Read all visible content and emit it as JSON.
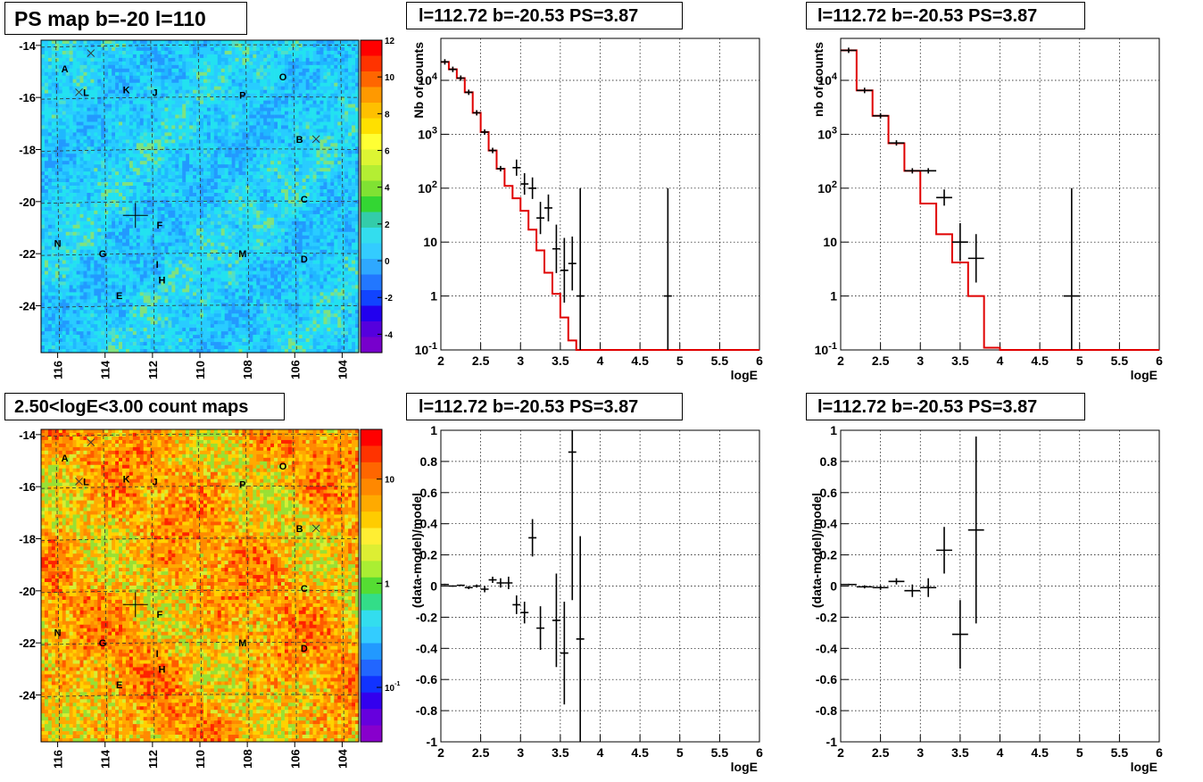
{
  "titles": {
    "map_top": "PS map b=-20 l=110",
    "map_bottom": "2.50<logE<3.00 count maps",
    "spec1": "l=112.72 b=-20.53 PS=3.87",
    "spec2": "l=112.72 b=-20.53 PS=3.87",
    "res1": "l=112.72 b=-20.53 PS=3.87",
    "res2": "l=112.72 b=-20.53 PS=3.87"
  },
  "colors": {
    "model_line": "#e00000",
    "data_marker": "#000000",
    "grid": "#000000"
  },
  "chart_data": [
    {
      "type": "heatmap",
      "id": "map_top",
      "title": "PS map b=-20 l=110",
      "x_ticks": [
        "116",
        "114",
        "112",
        "110",
        "108",
        "106",
        "104"
      ],
      "y_ticks": [
        "-14",
        "-16",
        "-18",
        "-20",
        "-22",
        "-24"
      ],
      "xlim": [
        116.7,
        103.3
      ],
      "ylim": [
        -25.8,
        -13.8
      ],
      "colorbar_ticks": [
        "12",
        "10",
        "8",
        "6",
        "4",
        "2",
        "0",
        "-2",
        "-4"
      ],
      "colorbar_range": [
        -5,
        12
      ],
      "source_labels": [
        {
          "t": "A",
          "x": 115.7,
          "y": -14.9
        },
        {
          "t": "L",
          "x": 114.8,
          "y": -15.8
        },
        {
          "t": "K",
          "x": 113.1,
          "y": -15.7
        },
        {
          "t": "J",
          "x": 111.9,
          "y": -15.8
        },
        {
          "t": "P",
          "x": 108.2,
          "y": -15.9
        },
        {
          "t": "O",
          "x": 106.5,
          "y": -15.2
        },
        {
          "t": "B",
          "x": 105.8,
          "y": -17.6
        },
        {
          "t": "C",
          "x": 105.6,
          "y": -19.9
        },
        {
          "t": "F",
          "x": 111.7,
          "y": -20.9
        },
        {
          "t": "N",
          "x": 116.0,
          "y": -21.6
        },
        {
          "t": "G",
          "x": 114.1,
          "y": -22.0
        },
        {
          "t": "M",
          "x": 108.2,
          "y": -22.0
        },
        {
          "t": "D",
          "x": 105.6,
          "y": -22.2
        },
        {
          "t": "I",
          "x": 111.8,
          "y": -22.4
        },
        {
          "t": "H",
          "x": 111.6,
          "y": -23.0
        },
        {
          "t": "E",
          "x": 113.4,
          "y": -23.6
        }
      ],
      "crosses": [
        {
          "x": 114.6,
          "y": -14.3
        },
        {
          "x": 115.1,
          "y": -15.8
        },
        {
          "x": 105.1,
          "y": -17.6
        }
      ],
      "marker": {
        "x": 112.72,
        "y": -20.53
      }
    },
    {
      "type": "heatmap",
      "id": "map_bottom",
      "title": "2.50<logE<3.00 count maps",
      "x_ticks": [
        "116",
        "114",
        "112",
        "110",
        "108",
        "106",
        "104"
      ],
      "y_ticks": [
        "-14",
        "-16",
        "-18",
        "-20",
        "-22",
        "-24"
      ],
      "xlim": [
        116.7,
        103.3
      ],
      "ylim": [
        -25.8,
        -13.8
      ],
      "colorbar_ticks": [
        "10",
        "1",
        "10^-1"
      ],
      "colorbar_scale": "log",
      "colorbar_range": [
        0.03,
        30
      ],
      "source_labels": "same as map_top",
      "marker": {
        "x": 112.72,
        "y": -20.53
      }
    },
    {
      "type": "line",
      "id": "spec1",
      "title": "l=112.72 b=-20.53 PS=3.87",
      "xlabel": "logE",
      "ylabel": "Nb of counts",
      "yscale": "log",
      "xlim": [
        2,
        6
      ],
      "ylim": [
        0.1,
        60000
      ],
      "x_ticks": [
        "2",
        "2.5",
        "3",
        "3.5",
        "4",
        "4.5",
        "5",
        "5.5",
        "6"
      ],
      "y_ticks": [
        "10^-1",
        "1",
        "10",
        "10^2",
        "10^3",
        "10^4"
      ],
      "grid": true,
      "model": {
        "bin_width": 0.1,
        "edges_start": 2.0,
        "values": [
          22000,
          16000,
          11000,
          6000,
          2500,
          1100,
          500,
          230,
          110,
          65,
          38,
          17,
          7,
          2.7,
          1.1,
          0.4,
          0.15,
          0.1,
          0.1,
          0.1,
          0.1,
          0.1,
          0.1,
          0.1,
          0.1,
          0.1,
          0.1,
          0.1,
          0.1,
          0.1,
          0.1,
          0.1,
          0.1,
          0.1,
          0.1,
          0.1,
          0.1,
          0.1,
          0.1,
          0.1
        ]
      },
      "data": [
        {
          "x": 2.05,
          "y": 22000
        },
        {
          "x": 2.15,
          "y": 16000
        },
        {
          "x": 2.25,
          "y": 11000
        },
        {
          "x": 2.35,
          "y": 6000
        },
        {
          "x": 2.45,
          "y": 2500
        },
        {
          "x": 2.55,
          "y": 1100
        },
        {
          "x": 2.65,
          "y": 500
        },
        {
          "x": 2.75,
          "y": 230
        },
        {
          "x": 2.95,
          "y": 240,
          "e": 0.15
        },
        {
          "x": 3.05,
          "y": 120,
          "e": 0.2
        },
        {
          "x": 3.15,
          "y": 100,
          "e": 0.2
        },
        {
          "x": 3.25,
          "y": 28,
          "e": 0.3
        },
        {
          "x": 3.35,
          "y": 43,
          "e": 0.25
        },
        {
          "x": 3.45,
          "y": 7.5,
          "e": 0.45
        },
        {
          "x": 3.55,
          "y": 3,
          "e": 0.6
        },
        {
          "x": 3.65,
          "y": 4,
          "e": 0.5
        },
        {
          "x": 3.75,
          "y": 1,
          "e": 2
        },
        {
          "x": 4.85,
          "y": 1,
          "e": 2
        }
      ]
    },
    {
      "type": "line",
      "id": "spec2",
      "title": "l=112.72 b=-20.53 PS=3.87",
      "xlabel": "logE",
      "ylabel": "nb of counts",
      "yscale": "log",
      "xlim": [
        2,
        6
      ],
      "ylim": [
        0.1,
        60000
      ],
      "x_ticks": [
        "2",
        "2.5",
        "3",
        "3.5",
        "4",
        "4.5",
        "5",
        "5.5",
        "6"
      ],
      "y_ticks": [
        "10^-1",
        "1",
        "10",
        "10^2",
        "10^3",
        "10^4"
      ],
      "grid": true,
      "model": {
        "bin_width": 0.2,
        "edges_start": 2.0,
        "values": [
          36000,
          6500,
          2200,
          680,
          210,
          52,
          14,
          4.2,
          1,
          0.11,
          0.1,
          0.1,
          0.1,
          0.1,
          0.1,
          0.1,
          0.1,
          0.1,
          0.1,
          0.1
        ]
      },
      "data": [
        {
          "x": 2.1,
          "y": 36000
        },
        {
          "x": 2.3,
          "y": 6500
        },
        {
          "x": 2.5,
          "y": 2200
        },
        {
          "x": 2.7,
          "y": 690
        },
        {
          "x": 2.9,
          "y": 210
        },
        {
          "x": 3.1,
          "y": 210
        },
        {
          "x": 3.3,
          "y": 67,
          "e": 0.15
        },
        {
          "x": 3.5,
          "y": 10,
          "e": 0.35
        },
        {
          "x": 3.7,
          "y": 5,
          "e": 0.45
        },
        {
          "x": 4.9,
          "y": 1,
          "e": 2
        }
      ]
    },
    {
      "type": "scatter",
      "id": "res1",
      "title": "l=112.72 b=-20.53 PS=3.87",
      "xlabel": "logE",
      "ylabel": "(data-model)/model",
      "xlim": [
        2,
        6
      ],
      "ylim": [
        -1,
        1
      ],
      "x_ticks": [
        "2",
        "2.5",
        "3",
        "3.5",
        "4",
        "4.5",
        "5",
        "5.5",
        "6"
      ],
      "y_ticks": [
        "-1",
        "-0.8",
        "-0.6",
        "-0.4",
        "-0.2",
        "0",
        "0.2",
        "0.4",
        "0.6",
        "0.8",
        "1"
      ],
      "grid": true,
      "points": [
        {
          "x": 2.05,
          "y": 0.01,
          "e": 0.005
        },
        {
          "x": 2.15,
          "y": 0.0,
          "e": 0.005
        },
        {
          "x": 2.25,
          "y": 0.005,
          "e": 0.005
        },
        {
          "x": 2.35,
          "y": -0.01,
          "e": 0.01
        },
        {
          "x": 2.45,
          "y": 0.0,
          "e": 0.01
        },
        {
          "x": 2.55,
          "y": -0.02,
          "e": 0.02
        },
        {
          "x": 2.65,
          "y": 0.04,
          "e": 0.02
        },
        {
          "x": 2.75,
          "y": 0.02,
          "e": 0.03
        },
        {
          "x": 2.85,
          "y": 0.02,
          "e": 0.04
        },
        {
          "x": 2.95,
          "y": -0.12,
          "e": 0.06
        },
        {
          "x": 3.05,
          "y": -0.17,
          "e": 0.07
        },
        {
          "x": 3.15,
          "y": 0.31,
          "e": 0.12
        },
        {
          "x": 3.25,
          "y": -0.27,
          "e": 0.14
        },
        {
          "x": 3.45,
          "y": -0.22,
          "e": 0.3
        },
        {
          "x": 3.55,
          "y": -0.43,
          "e": 0.33
        },
        {
          "x": 3.65,
          "y": 0.86,
          "e": 0.95
        },
        {
          "x": 3.75,
          "y": -0.34,
          "e": 0.66
        }
      ]
    },
    {
      "type": "scatter",
      "id": "res2",
      "title": "l=112.72 b=-20.53 PS=3.87",
      "xlabel": "logE",
      "ylabel": "(data-model)/model",
      "xlim": [
        2,
        6
      ],
      "ylim": [
        -1,
        1
      ],
      "x_ticks": [
        "2",
        "2.5",
        "3",
        "3.5",
        "4",
        "4.5",
        "5",
        "5.5",
        "6"
      ],
      "y_ticks": [
        "-1",
        "-0.8",
        "-0.6",
        "-0.4",
        "-0.2",
        "0",
        "0.2",
        "0.4",
        "0.6",
        "0.8",
        "1"
      ],
      "grid": true,
      "points": [
        {
          "x": 2.1,
          "y": 0.01,
          "e": 0.005
        },
        {
          "x": 2.3,
          "y": -0.005,
          "e": 0.01
        },
        {
          "x": 2.5,
          "y": -0.01,
          "e": 0.015
        },
        {
          "x": 2.7,
          "y": 0.03,
          "e": 0.02
        },
        {
          "x": 2.9,
          "y": -0.03,
          "e": 0.04
        },
        {
          "x": 3.1,
          "y": -0.01,
          "e": 0.06
        },
        {
          "x": 3.3,
          "y": 0.23,
          "e": 0.15
        },
        {
          "x": 3.5,
          "y": -0.31,
          "e": 0.22
        },
        {
          "x": 3.7,
          "y": 0.36,
          "e": 0.6
        }
      ]
    }
  ]
}
